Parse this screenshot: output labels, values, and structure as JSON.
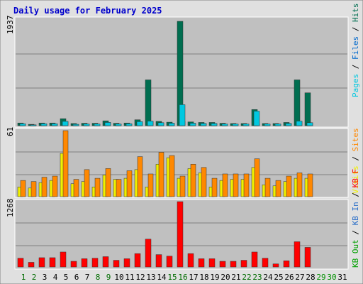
{
  "title": "Daily usage for February 2025",
  "colors": {
    "title": "#0000cc",
    "pages": "#00c8e0",
    "files": "#0068cc",
    "hits": "#006e50",
    "visits": "#f0f000",
    "sites": "#ff8800",
    "kb_out": "#00a000",
    "kb_in": "#2a6ec8",
    "kb_f": "#ff0000",
    "panel_bg": "#c0c0c0",
    "frame_bg": "#e0e0e0",
    "grid": "#808080",
    "day_weekday": "#000000",
    "day_weekend": "#006c00",
    "day_future": "#009000"
  },
  "panels": {
    "top": {
      "max_label": "1937",
      "legend": [
        {
          "text": "Pages",
          "color": "#00c8e0"
        },
        {
          "text": " / ",
          "color": "#000000"
        },
        {
          "text": "Files",
          "color": "#0068cc"
        },
        {
          "text": " / ",
          "color": "#000000"
        },
        {
          "text": "Hits",
          "color": "#006e50"
        }
      ]
    },
    "middle": {
      "max_label": "61",
      "legend": [
        {
          "text": "Visits",
          "color": "#f0f000"
        },
        {
          "text": " / ",
          "color": "#000000"
        },
        {
          "text": "Sites",
          "color": "#ff8800"
        }
      ]
    },
    "bottom": {
      "max_label": "1268",
      "legend": [
        {
          "text": "KB Out",
          "color": "#00a000"
        },
        {
          "text": " / ",
          "color": "#000000"
        },
        {
          "text": "KB In",
          "color": "#2a6ec8"
        },
        {
          "text": " / ",
          "color": "#000000"
        },
        {
          "text": "KB F",
          "color": "#ff0000"
        }
      ]
    }
  },
  "chart_data": [
    {
      "type": "bar",
      "title": "Daily usage for February 2025",
      "categories": [
        "1",
        "2",
        "3",
        "4",
        "5",
        "6",
        "7",
        "8",
        "9",
        "10",
        "11",
        "12",
        "13",
        "14",
        "15",
        "16",
        "17",
        "18",
        "19",
        "20",
        "21",
        "22",
        "23",
        "24",
        "25",
        "26",
        "27",
        "28",
        "29",
        "30",
        "31"
      ],
      "ylim": [
        0,
        1937
      ],
      "series": [
        {
          "name": "Hits",
          "color": "#006e50",
          "values": [
            50,
            25,
            50,
            50,
            130,
            40,
            45,
            45,
            90,
            45,
            50,
            110,
            850,
            80,
            65,
            1937,
            70,
            60,
            60,
            45,
            40,
            40,
            300,
            40,
            40,
            60,
            850,
            610,
            0,
            0,
            0
          ]
        },
        {
          "name": "Files",
          "color": "#0068cc",
          "values": [
            35,
            15,
            35,
            35,
            80,
            25,
            30,
            30,
            60,
            30,
            35,
            75,
            80,
            55,
            45,
            80,
            45,
            40,
            40,
            30,
            30,
            30,
            30,
            30,
            30,
            40,
            80,
            55,
            0,
            0,
            0
          ]
        },
        {
          "name": "Pages",
          "color": "#00c8e0",
          "values": [
            35,
            15,
            35,
            35,
            80,
            25,
            30,
            30,
            60,
            30,
            35,
            75,
            85,
            55,
            45,
            390,
            45,
            40,
            40,
            30,
            30,
            30,
            270,
            30,
            30,
            40,
            85,
            55,
            0,
            0,
            0
          ]
        }
      ]
    },
    {
      "type": "bar",
      "categories": [
        "1",
        "2",
        "3",
        "4",
        "5",
        "6",
        "7",
        "8",
        "9",
        "10",
        "11",
        "12",
        "13",
        "14",
        "15",
        "16",
        "17",
        "18",
        "19",
        "20",
        "21",
        "22",
        "23",
        "24",
        "25",
        "26",
        "27",
        "28",
        "29",
        "30",
        "31"
      ],
      "ylim": [
        0,
        61
      ],
      "series": [
        {
          "name": "Visits",
          "color": "#f0f000",
          "values": [
            9,
            8,
            13,
            15,
            40,
            12,
            14,
            9,
            20,
            16,
            17,
            25,
            9,
            30,
            36,
            17,
            26,
            22,
            9,
            15,
            16,
            16,
            27,
            11,
            10,
            14,
            17,
            17,
            0,
            0,
            0
          ]
        },
        {
          "name": "Sites",
          "color": "#ff8800",
          "values": [
            15,
            14,
            18,
            19,
            61,
            16,
            25,
            17,
            26,
            16,
            24,
            37,
            21,
            41,
            38,
            19,
            30,
            27,
            17,
            21,
            21,
            21,
            35,
            17,
            15,
            19,
            22,
            21,
            0,
            0,
            0
          ]
        }
      ]
    },
    {
      "type": "bar",
      "categories": [
        "1",
        "2",
        "3",
        "4",
        "5",
        "6",
        "7",
        "8",
        "9",
        "10",
        "11",
        "12",
        "13",
        "14",
        "15",
        "16",
        "17",
        "18",
        "19",
        "20",
        "21",
        "22",
        "23",
        "24",
        "25",
        "26",
        "27",
        "28",
        "29",
        "30",
        "31"
      ],
      "ylim": [
        0,
        1268
      ],
      "series": [
        {
          "name": "KB F",
          "color": "#ff0000",
          "values": [
            170,
            90,
            180,
            180,
            290,
            110,
            160,
            170,
            200,
            130,
            160,
            260,
            540,
            240,
            210,
            1268,
            260,
            160,
            160,
            110,
            110,
            130,
            290,
            170,
            60,
            120,
            490,
            380,
            0,
            0,
            0
          ]
        }
      ]
    }
  ]
}
